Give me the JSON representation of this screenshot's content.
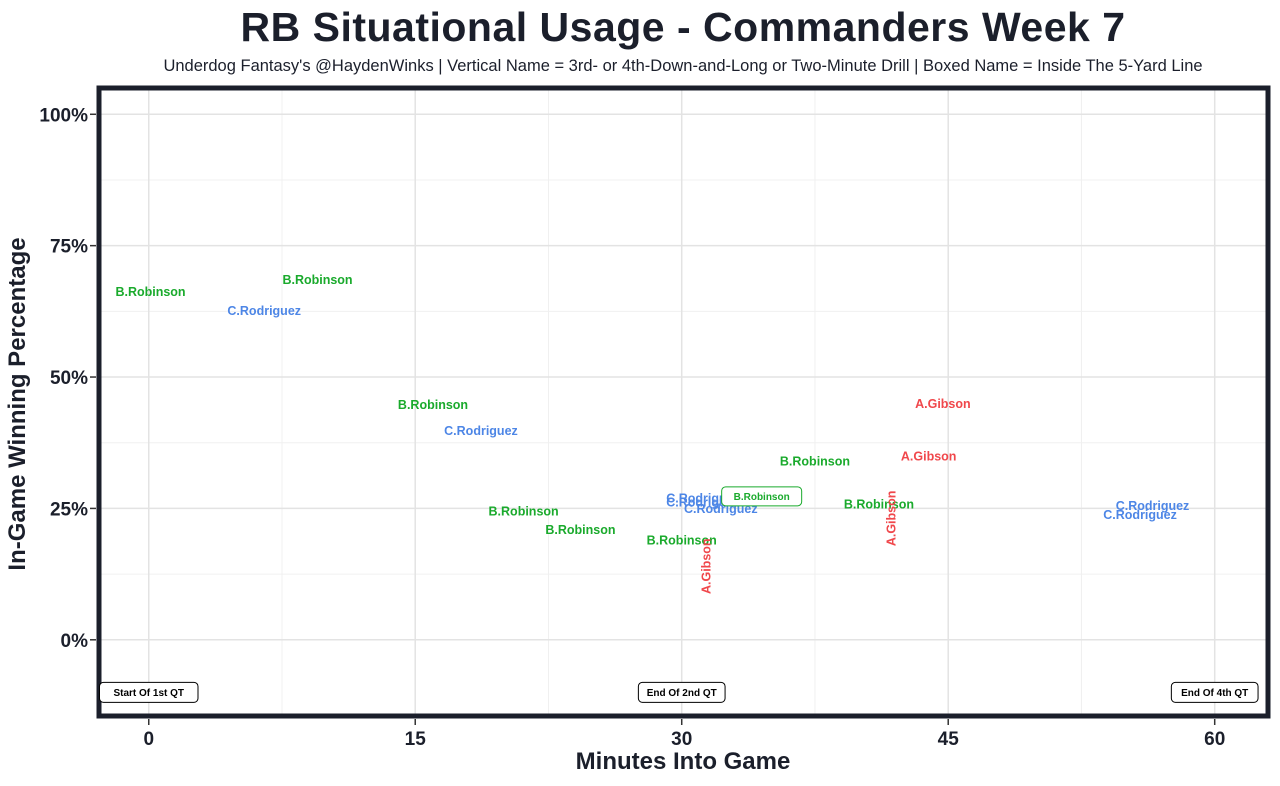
{
  "chart_data": {
    "type": "scatter",
    "title": "RB Situational Usage - Commanders Week 7",
    "subtitle": "Underdog Fantasy's @HaydenWinks | Vertical Name = 3rd- or 4th-Down-and-Long or Two-Minute Drill | Boxed Name = Inside The 5-Yard Line",
    "xlabel": "Minutes Into Game",
    "ylabel": "In-Game Winning Percentage",
    "xlim": [
      -2.8,
      63
    ],
    "ylim": [
      -14.5,
      105
    ],
    "x_ticks": [
      {
        "value": 0,
        "label": "0"
      },
      {
        "value": 15,
        "label": "15"
      },
      {
        "value": 30,
        "label": "30"
      },
      {
        "value": 45,
        "label": "45"
      },
      {
        "value": 60,
        "label": "60"
      }
    ],
    "y_ticks": [
      {
        "value": 0,
        "label": "0%"
      },
      {
        "value": 25,
        "label": "25%"
      },
      {
        "value": 50,
        "label": "50%"
      },
      {
        "value": 75,
        "label": "75%"
      },
      {
        "value": 100,
        "label": "100%"
      }
    ],
    "grid": true,
    "colors": {
      "B.Robinson": "#1aaa2c",
      "C.Rodriguez": "#4d86e6",
      "A.Gibson": "#f0474b"
    },
    "points": [
      {
        "player": "B.Robinson",
        "x": 0.1,
        "y": 66.3,
        "style": "normal"
      },
      {
        "player": "B.Robinson",
        "x": 9.5,
        "y": 68.6,
        "style": "normal"
      },
      {
        "player": "C.Rodriguez",
        "x": 6.5,
        "y": 62.7,
        "style": "normal"
      },
      {
        "player": "B.Robinson",
        "x": 16.0,
        "y": 44.8,
        "style": "normal"
      },
      {
        "player": "C.Rodriguez",
        "x": 18.7,
        "y": 39.8,
        "style": "normal"
      },
      {
        "player": "B.Robinson",
        "x": 21.1,
        "y": 24.5,
        "style": "normal"
      },
      {
        "player": "B.Robinson",
        "x": 24.3,
        "y": 21.0,
        "style": "normal"
      },
      {
        "player": "B.Robinson",
        "x": 30.0,
        "y": 19.0,
        "style": "normal"
      },
      {
        "player": "C.Rodriguez",
        "x": 31.2,
        "y": 27.0,
        "style": "normal"
      },
      {
        "player": "C.Rodriguez",
        "x": 31.2,
        "y": 26.2,
        "style": "normal"
      },
      {
        "player": "C.Rodriguez",
        "x": 32.2,
        "y": 25.0,
        "style": "normal"
      },
      {
        "player": "B.Robinson",
        "x": 34.5,
        "y": 27.3,
        "style": "boxed"
      },
      {
        "player": "A.Gibson",
        "x": 31.4,
        "y": 14.0,
        "style": "vertical"
      },
      {
        "player": "B.Robinson",
        "x": 37.5,
        "y": 34.0,
        "style": "normal"
      },
      {
        "player": "B.Robinson",
        "x": 41.1,
        "y": 25.8,
        "style": "normal"
      },
      {
        "player": "A.Gibson",
        "x": 44.7,
        "y": 45.0,
        "style": "normal"
      },
      {
        "player": "A.Gibson",
        "x": 43.9,
        "y": 35.0,
        "style": "normal"
      },
      {
        "player": "A.Gibson",
        "x": 41.8,
        "y": 23.1,
        "style": "vertical"
      },
      {
        "player": "C.Rodriguez",
        "x": 56.5,
        "y": 25.6,
        "style": "normal"
      },
      {
        "player": "C.Rodriguez",
        "x": 55.8,
        "y": 23.8,
        "style": "normal"
      }
    ],
    "annotations": [
      {
        "text": "Start Of 1st QT",
        "x": 0,
        "y": -10
      },
      {
        "text": "End Of 2nd QT",
        "x": 30,
        "y": -10
      },
      {
        "text": "End Of 4th QT",
        "x": 60,
        "y": -10
      }
    ]
  }
}
